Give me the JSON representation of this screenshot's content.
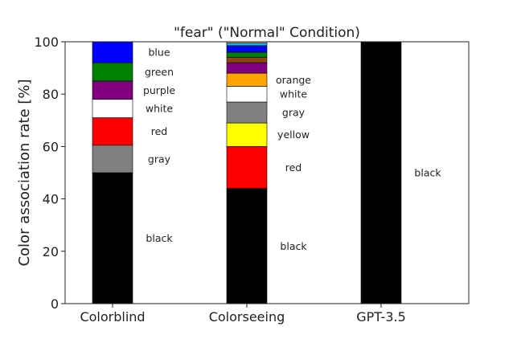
{
  "chart_data": {
    "type": "bar",
    "stacked": true,
    "title": "\"fear\" (\"Normal\" Condition)",
    "ylabel": "Color association rate [%]",
    "xlabel": "",
    "ylim": [
      0,
      100
    ],
    "yticks": [
      0,
      20,
      40,
      60,
      80,
      100
    ],
    "grid": false,
    "categories": [
      "Colorblind",
      "Colorseeing",
      "GPT-3.5"
    ],
    "bars": [
      {
        "category": "Colorblind",
        "segments": [
          {
            "label": "black",
            "value": 50.0,
            "color": "#000000"
          },
          {
            "label": "gray",
            "value": 10.5,
            "color": "#808080"
          },
          {
            "label": "red",
            "value": 10.5,
            "color": "#ff0000"
          },
          {
            "label": "white",
            "value": 7.0,
            "color": "#ffffff"
          },
          {
            "label": "purple",
            "value": 7.0,
            "color": "#800080"
          },
          {
            "label": "green",
            "value": 7.0,
            "color": "#008000"
          },
          {
            "label": "blue",
            "value": 8.0,
            "color": "#0000ff"
          }
        ]
      },
      {
        "category": "Colorseeing",
        "segments": [
          {
            "label": "black",
            "value": 44.0,
            "color": "#000000"
          },
          {
            "label": "red",
            "value": 16.0,
            "color": "#ff0000"
          },
          {
            "label": "yellow",
            "value": 9.0,
            "color": "#ffff00"
          },
          {
            "label": "gray",
            "value": 8.0,
            "color": "#808080"
          },
          {
            "label": "white",
            "value": 6.0,
            "color": "#ffffff"
          },
          {
            "label": "orange",
            "value": 5.0,
            "color": "#ffa500"
          },
          {
            "label": "",
            "value": 4.0,
            "color": "#800080"
          },
          {
            "label": "",
            "value": 2.0,
            "color": "#8b4513"
          },
          {
            "label": "",
            "value": 2.0,
            "color": "#008000"
          },
          {
            "label": "",
            "value": 2.5,
            "color": "#0000ff"
          },
          {
            "label": "",
            "value": 1.0,
            "color": "#00bcd4"
          },
          {
            "label": "",
            "value": 0.5,
            "color": "#ffc0cb"
          }
        ]
      },
      {
        "category": "GPT-3.5",
        "segments": [
          {
            "label": "black",
            "value": 100.0,
            "color": "#000000"
          }
        ]
      }
    ]
  }
}
